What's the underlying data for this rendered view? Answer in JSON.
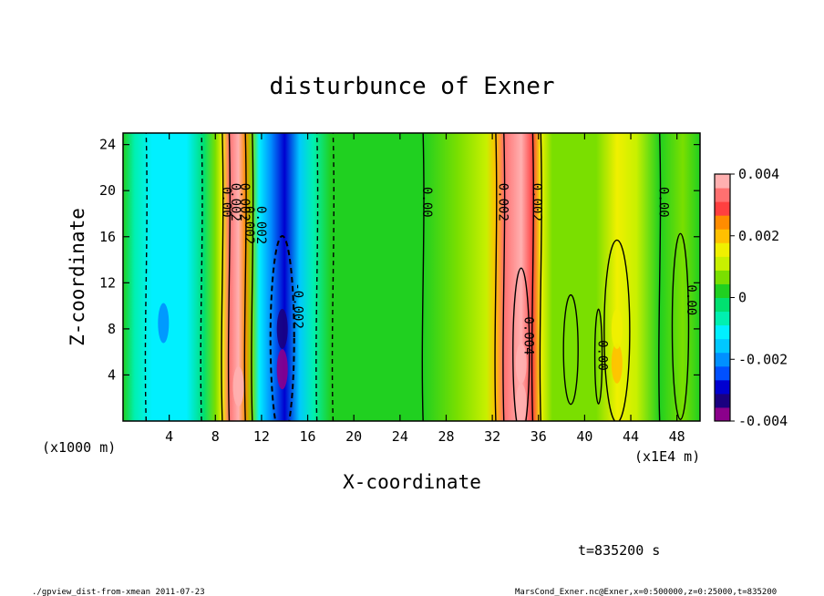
{
  "chart_data": {
    "type": "heatmap",
    "title": "disturbunce of Exner",
    "xlabel": "X-coordinate",
    "ylabel": "Z-coordinate",
    "x_unit_label": "(x1E4 m)",
    "y_unit_label": "(x1000 m)",
    "xlim": [
      0,
      50
    ],
    "ylim": [
      0,
      25
    ],
    "x_ticks": [
      "4",
      "8",
      "12",
      "16",
      "20",
      "24",
      "28",
      "32",
      "36",
      "40",
      "44",
      "48"
    ],
    "y_ticks": [
      "4",
      "8",
      "12",
      "16",
      "20",
      "24"
    ],
    "colorbar": {
      "range": [
        -0.004,
        0.004
      ],
      "tick_labels": [
        "0.004",
        "0.002",
        "0",
        "-0.002",
        "-0.004"
      ],
      "colors": [
        "#8b008b",
        "#1a0080",
        "#0000d0",
        "#0050ff",
        "#0090ff",
        "#00c8ff",
        "#00f0ff",
        "#00f0b0",
        "#00e070",
        "#20d020",
        "#7adf00",
        "#c8f000",
        "#f0f000",
        "#ffc000",
        "#ff8c00",
        "#ff4040",
        "#ff7070",
        "#ffb0b0"
      ]
    },
    "contour_labels": [
      "0.00",
      "0.002",
      "0.002",
      "0.002",
      "0.002",
      "0.00",
      "0.002",
      "0.002",
      "0.00",
      "0.00",
      "-0.002",
      "0.004",
      "0.00"
    ],
    "bands": [
      {
        "x": 0.0,
        "value": 0.0
      },
      {
        "x": 1.0,
        "value": -0.0006
      },
      {
        "x": 2.5,
        "value": -0.0012
      },
      {
        "x": 5.5,
        "value": -0.0009
      },
      {
        "x": 7.0,
        "value": -0.0002
      },
      {
        "x": 8.0,
        "value": 0.0006
      },
      {
        "x": 8.6,
        "value": 0.0016
      },
      {
        "x": 9.2,
        "value": 0.0034
      },
      {
        "x": 10.0,
        "value": 0.0044
      },
      {
        "x": 10.6,
        "value": 0.0026
      },
      {
        "x": 11.2,
        "value": 0.0008
      },
      {
        "x": 11.8,
        "value": -0.001
      },
      {
        "x": 12.8,
        "value": -0.002
      },
      {
        "x": 14.0,
        "value": -0.0028
      },
      {
        "x": 15.3,
        "value": -0.0016
      },
      {
        "x": 16.5,
        "value": -0.0008
      },
      {
        "x": 18.0,
        "value": 0.0
      },
      {
        "x": 22.0,
        "value": 0.0002
      },
      {
        "x": 26.0,
        "value": 0.0004
      },
      {
        "x": 29.0,
        "value": 0.0006
      },
      {
        "x": 31.5,
        "value": 0.001
      },
      {
        "x": 32.3,
        "value": 0.002
      },
      {
        "x": 33.0,
        "value": 0.0034
      },
      {
        "x": 34.5,
        "value": 0.0042
      },
      {
        "x": 35.5,
        "value": 0.003
      },
      {
        "x": 36.2,
        "value": 0.0016
      },
      {
        "x": 37.2,
        "value": 0.0008
      },
      {
        "x": 39.0,
        "value": 0.0006
      },
      {
        "x": 41.0,
        "value": 0.0006
      },
      {
        "x": 42.8,
        "value": 0.0014
      },
      {
        "x": 44.5,
        "value": 0.001
      },
      {
        "x": 46.5,
        "value": 0.0004
      },
      {
        "x": 48.5,
        "value": 0.0007
      },
      {
        "x": 50.0,
        "value": 0.0004
      }
    ],
    "blobs": [
      {
        "x": 3.5,
        "z": 8.5,
        "value": -0.002
      },
      {
        "x": 13.8,
        "z": 4.5,
        "value": -0.004
      },
      {
        "x": 13.8,
        "z": 8.0,
        "value": -0.0032
      },
      {
        "x": 10.0,
        "z": 3.0,
        "value": 0.0044
      },
      {
        "x": 34.5,
        "z": 5.0,
        "value": 0.0048
      },
      {
        "x": 34.5,
        "z": 1.5,
        "value": 0.0048
      },
      {
        "x": 42.8,
        "z": 5.0,
        "value": 0.0022
      },
      {
        "x": 42.8,
        "z": 8.0,
        "value": 0.0017
      }
    ]
  },
  "footer": {
    "time_label": "t=835200 s",
    "script_label": "./gpview_dist-from-xmean   2011-07-23",
    "source_label": "MarsCond_Exner.nc@Exner,x=0:500000,z=0:25000,t=835200"
  }
}
